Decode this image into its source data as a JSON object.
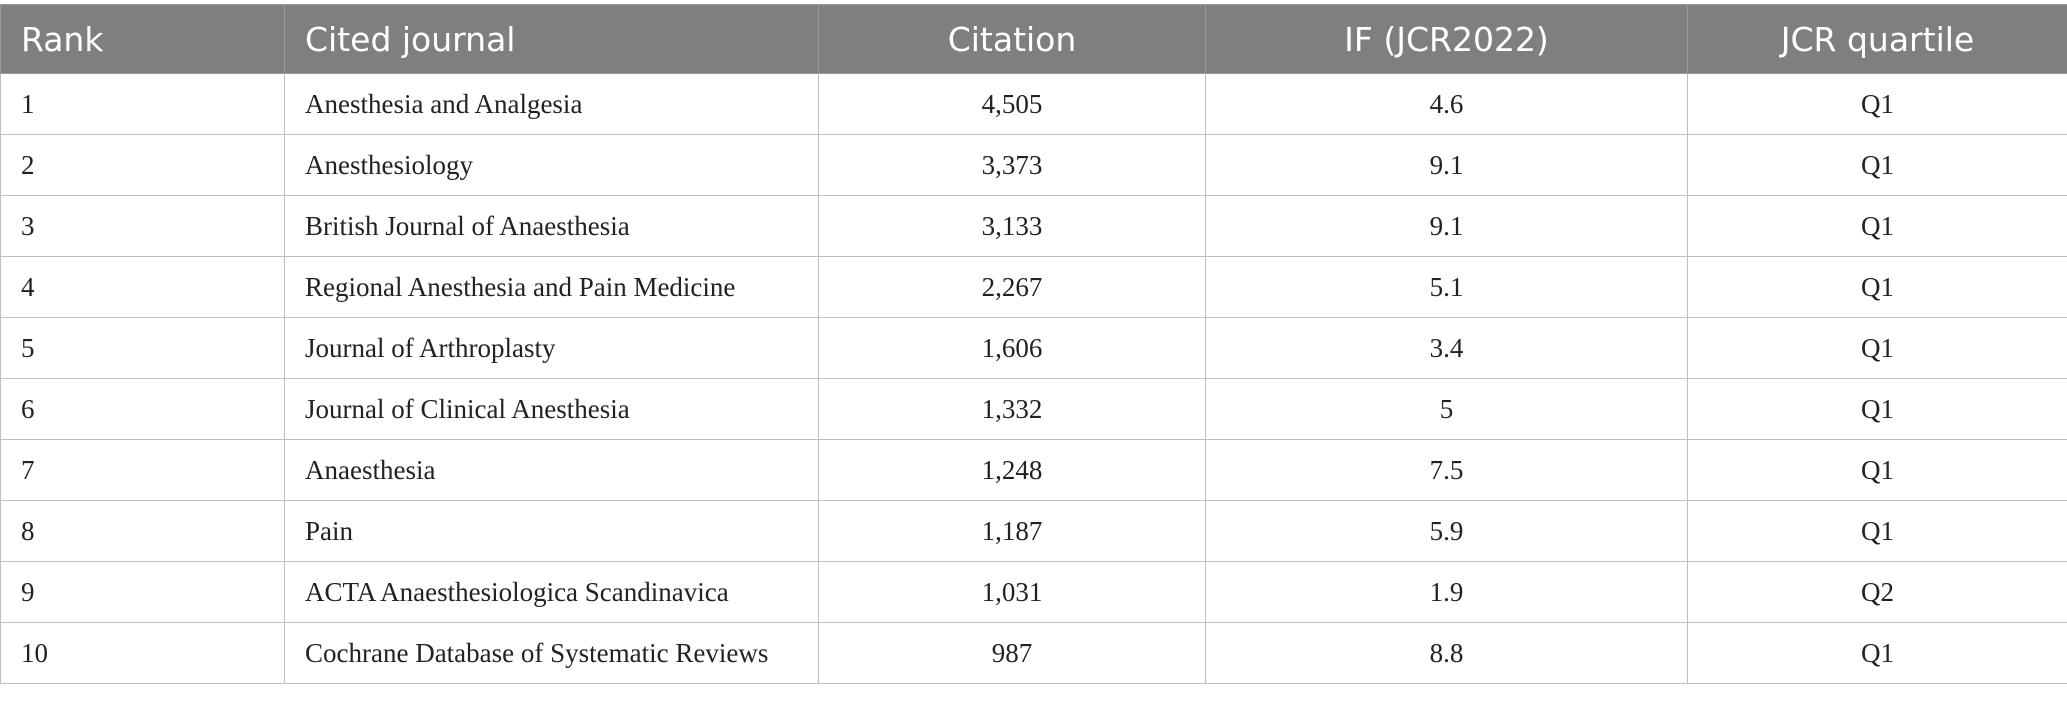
{
  "table": {
    "headers": [
      "Rank",
      "Cited journal",
      "Citation",
      "IF (JCR2022)",
      "JCR quartile"
    ],
    "rows": [
      [
        "1",
        "Anesthesia and Analgesia",
        "4,505",
        "4.6",
        "Q1"
      ],
      [
        "2",
        "Anesthesiology",
        "3,373",
        "9.1",
        "Q1"
      ],
      [
        "3",
        "British Journal of Anaesthesia",
        "3,133",
        "9.1",
        "Q1"
      ],
      [
        "4",
        "Regional Anesthesia and Pain Medicine",
        "2,267",
        "5.1",
        "Q1"
      ],
      [
        "5",
        "Journal of Arthroplasty",
        "1,606",
        "3.4",
        "Q1"
      ],
      [
        "6",
        "Journal of Clinical Anesthesia",
        "1,332",
        "5",
        "Q1"
      ],
      [
        "7",
        "Anaesthesia",
        "1,248",
        "7.5",
        "Q1"
      ],
      [
        "8",
        "Pain",
        "1,187",
        "5.9",
        "Q1"
      ],
      [
        "9",
        "ACTA Anaesthesiologica Scandinavica",
        "1,031",
        "1.9",
        "Q2"
      ],
      [
        "10",
        "Cochrane Database of Systematic Reviews",
        "987",
        "8.8",
        "Q1"
      ]
    ]
  }
}
